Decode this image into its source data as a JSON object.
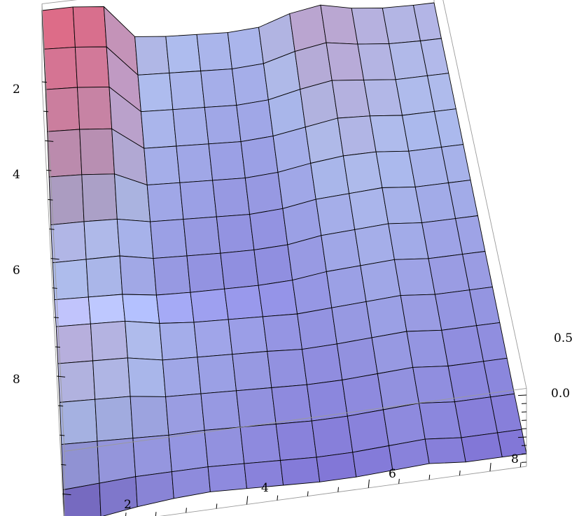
{
  "chart_data": {
    "type": "surface3d",
    "title": "",
    "xlabel": "",
    "ylabel": "",
    "zlabel": "",
    "x_range": [
      1,
      8.6
    ],
    "y_range": [
      1,
      8.6
    ],
    "z_range": [
      -0.35,
      0.58
    ],
    "x_ticks": [
      "2",
      "4",
      "6",
      "8"
    ],
    "y_ticks": [
      "2",
      "4",
      "6",
      "8"
    ],
    "z_ticks": [
      "0.5",
      "0.0"
    ],
    "grid_x": [
      1,
      1.6,
      2.2,
      2.8,
      3.4,
      4,
      4.6,
      5.2,
      5.8,
      6.4,
      7,
      7.6,
      8.2,
      8.6
    ],
    "grid_y": [
      1,
      1.6,
      2.2,
      2.8,
      3.4,
      4,
      4.6,
      5.2,
      5.8,
      6.4,
      7,
      7.6,
      8.2,
      8.6
    ],
    "z_values": [
      [
        0.5,
        0.5,
        0.46,
        0.06,
        0.02,
        0.0,
        -0.02,
        0.0,
        0.12,
        0.18,
        0.1,
        0.06,
        0.05,
        0.05
      ],
      [
        0.46,
        0.44,
        0.4,
        0.02,
        0.0,
        -0.02,
        -0.04,
        -0.02,
        0.08,
        0.14,
        0.08,
        0.04,
        0.03,
        0.03
      ],
      [
        0.4,
        0.38,
        0.34,
        0.0,
        -0.02,
        -0.04,
        -0.06,
        -0.04,
        0.04,
        0.1,
        0.06,
        0.02,
        0.02,
        0.02
      ],
      [
        0.32,
        0.3,
        0.26,
        -0.02,
        -0.04,
        -0.06,
        -0.08,
        -0.06,
        0.0,
        0.06,
        0.04,
        0.0,
        0.0,
        0.0
      ],
      [
        0.2,
        0.18,
        0.14,
        -0.04,
        -0.06,
        -0.08,
        -0.1,
        -0.08,
        -0.02,
        0.02,
        0.02,
        -0.02,
        -0.02,
        -0.02
      ],
      [
        0.05,
        0.04,
        0.02,
        -0.06,
        -0.08,
        -0.1,
        -0.12,
        -0.1,
        -0.04,
        -0.02,
        0.0,
        -0.04,
        -0.04,
        -0.04
      ],
      [
        0.02,
        0.01,
        0.0,
        -0.08,
        -0.1,
        -0.12,
        -0.13,
        -0.12,
        -0.06,
        -0.04,
        -0.02,
        -0.06,
        -0.06,
        -0.06
      ],
      [
        0.0,
        -0.02,
        -0.04,
        -0.1,
        -0.12,
        -0.13,
        -0.14,
        -0.13,
        -0.08,
        -0.06,
        -0.04,
        -0.08,
        -0.08,
        -0.08
      ],
      [
        0.1,
        0.08,
        0.06,
        -0.02,
        -0.06,
        -0.08,
        -0.1,
        -0.12,
        -0.1,
        -0.08,
        -0.06,
        -0.1,
        -0.1,
        -0.1
      ],
      [
        0.08,
        0.06,
        0.04,
        -0.04,
        -0.06,
        -0.08,
        -0.1,
        -0.13,
        -0.12,
        -0.1,
        -0.08,
        -0.12,
        -0.12,
        -0.12
      ],
      [
        0.04,
        0.02,
        0.0,
        -0.06,
        -0.08,
        -0.1,
        -0.12,
        -0.14,
        -0.14,
        -0.12,
        -0.1,
        -0.14,
        -0.14,
        -0.14
      ],
      [
        -0.04,
        -0.06,
        -0.08,
        -0.1,
        -0.1,
        -0.12,
        -0.14,
        -0.16,
        -0.16,
        -0.14,
        -0.12,
        -0.16,
        -0.16,
        -0.16
      ],
      [
        -0.16,
        -0.14,
        -0.12,
        -0.12,
        -0.12,
        -0.14,
        -0.16,
        -0.18,
        -0.18,
        -0.16,
        -0.14,
        -0.18,
        -0.18,
        -0.18
      ],
      [
        -0.32,
        -0.26,
        -0.2,
        -0.16,
        -0.14,
        -0.16,
        -0.18,
        -0.2,
        -0.2,
        -0.18,
        -0.16,
        -0.2,
        -0.2,
        -0.2
      ]
    ],
    "colors": {
      "high": "#f56a8a",
      "mid": "#b8c8ff",
      "low": "#6a4fd8",
      "mesh": "#000000",
      "box": "#9a9a9a"
    },
    "grid": true,
    "legend": "none"
  }
}
